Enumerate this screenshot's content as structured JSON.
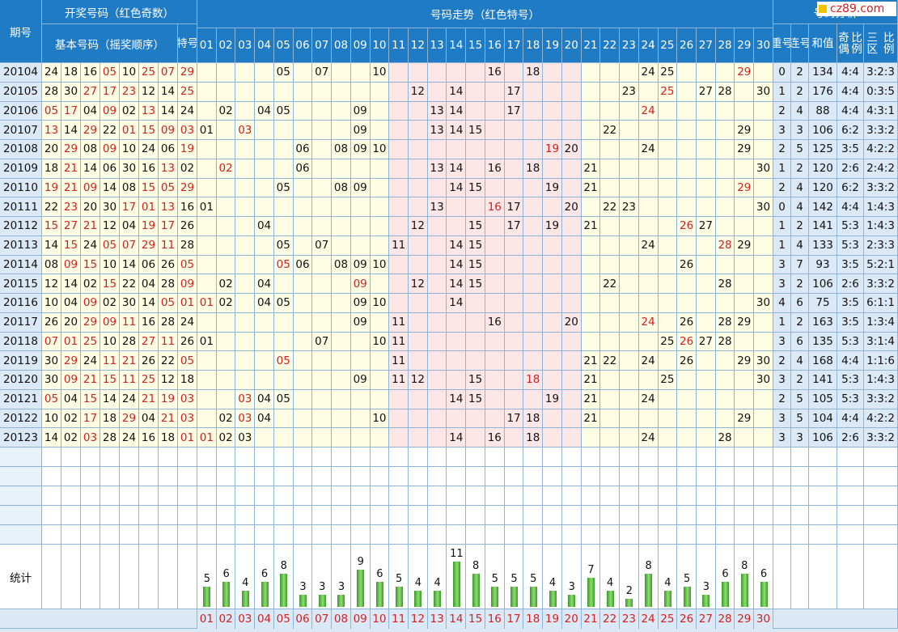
{
  "header": {
    "period": "期号",
    "winning_group": "开奖号码（红色奇数）",
    "basic_numbers": "基本号码（摇奖顺序）",
    "special_l1": "特",
    "special_l2": "号",
    "trend_group": "号码走势（红色特号）",
    "analysis_group": "号码分析",
    "repeat_l1": "重",
    "repeat_l2": "号",
    "consec_l1": "连",
    "consec_l2": "号",
    "sum": "和值",
    "oddeven_l1": "奇偶",
    "oddeven_l2": "比例",
    "zone_l1": "三区",
    "zone_l2": "比例",
    "trend_numbers": [
      "01",
      "02",
      "03",
      "04",
      "05",
      "06",
      "07",
      "08",
      "09",
      "10",
      "11",
      "12",
      "13",
      "14",
      "15",
      "16",
      "17",
      "18",
      "19",
      "20",
      "21",
      "22",
      "23",
      "24",
      "25",
      "26",
      "27",
      "28",
      "29",
      "30"
    ]
  },
  "logo": "cz89.com",
  "stats_label": "统计",
  "rows": [
    {
      "period": "20104",
      "nums": [
        "24",
        "18",
        "16",
        "05",
        "10",
        "25",
        "07"
      ],
      "special": "29",
      "hits": [
        5,
        7,
        10,
        16,
        18,
        24,
        25
      ],
      "sp": 29,
      "repeat": "0",
      "consec": "2",
      "sum": "134",
      "oe": "4:4",
      "zone": "3:2:3"
    },
    {
      "period": "20105",
      "nums": [
        "28",
        "30",
        "27",
        "17",
        "23",
        "12",
        "14"
      ],
      "special": "25",
      "hits": [
        12,
        14,
        17,
        23,
        27,
        28,
        30
      ],
      "sp": 25,
      "repeat": "1",
      "consec": "2",
      "sum": "176",
      "oe": "4:4",
      "zone": "0:3:5"
    },
    {
      "period": "20106",
      "nums": [
        "05",
        "17",
        "04",
        "09",
        "02",
        "13",
        "14"
      ],
      "special": "24",
      "hits": [
        2,
        4,
        5,
        9,
        13,
        14,
        17
      ],
      "sp": 24,
      "repeat": "2",
      "consec": "4",
      "sum": "88",
      "oe": "4:4",
      "zone": "4:3:1"
    },
    {
      "period": "20107",
      "nums": [
        "13",
        "14",
        "29",
        "22",
        "01",
        "15",
        "09"
      ],
      "special": "03",
      "hits": [
        1,
        9,
        13,
        14,
        15,
        22,
        29
      ],
      "sp": 3,
      "repeat": "3",
      "consec": "3",
      "sum": "106",
      "oe": "6:2",
      "zone": "3:3:2"
    },
    {
      "period": "20108",
      "nums": [
        "20",
        "29",
        "08",
        "09",
        "10",
        "24",
        "06"
      ],
      "special": "19",
      "hits": [
        6,
        8,
        9,
        10,
        20,
        24,
        29
      ],
      "sp": 19,
      "repeat": "2",
      "consec": "5",
      "sum": "125",
      "oe": "3:5",
      "zone": "4:2:2"
    },
    {
      "period": "20109",
      "nums": [
        "18",
        "21",
        "14",
        "06",
        "30",
        "16",
        "13"
      ],
      "special": "02",
      "hits": [
        6,
        13,
        14,
        16,
        18,
        21,
        30
      ],
      "sp": 2,
      "repeat": "1",
      "consec": "2",
      "sum": "120",
      "oe": "2:6",
      "zone": "2:4:2"
    },
    {
      "period": "20110",
      "nums": [
        "19",
        "21",
        "09",
        "14",
        "08",
        "15",
        "05"
      ],
      "special": "29",
      "hits": [
        5,
        8,
        9,
        14,
        15,
        19,
        21
      ],
      "sp": 29,
      "repeat": "2",
      "consec": "4",
      "sum": "120",
      "oe": "6:2",
      "zone": "3:3:2"
    },
    {
      "period": "20111",
      "nums": [
        "22",
        "23",
        "20",
        "30",
        "17",
        "01",
        "13"
      ],
      "special": "16",
      "hits": [
        1,
        13,
        17,
        20,
        22,
        23,
        30
      ],
      "sp": 16,
      "repeat": "0",
      "consec": "4",
      "sum": "142",
      "oe": "4:4",
      "zone": "1:4:3"
    },
    {
      "period": "20112",
      "nums": [
        "15",
        "27",
        "21",
        "12",
        "04",
        "19",
        "17"
      ],
      "special": "26",
      "hits": [
        4,
        12,
        15,
        17,
        19,
        21,
        27
      ],
      "sp": 26,
      "repeat": "1",
      "consec": "2",
      "sum": "141",
      "oe": "5:3",
      "zone": "1:4:3"
    },
    {
      "period": "20113",
      "nums": [
        "14",
        "15",
        "24",
        "05",
        "07",
        "29",
        "11"
      ],
      "special": "28",
      "hits": [
        5,
        7,
        11,
        14,
        15,
        24,
        29
      ],
      "sp": 28,
      "repeat": "1",
      "consec": "4",
      "sum": "133",
      "oe": "5:3",
      "zone": "2:3:3"
    },
    {
      "period": "20114",
      "nums": [
        "08",
        "09",
        "15",
        "10",
        "14",
        "06",
        "26"
      ],
      "special": "05",
      "hits": [
        6,
        8,
        9,
        10,
        14,
        15,
        26
      ],
      "sp": 5,
      "repeat": "3",
      "consec": "7",
      "sum": "93",
      "oe": "3:5",
      "zone": "5:2:1"
    },
    {
      "period": "20115",
      "nums": [
        "12",
        "14",
        "02",
        "15",
        "22",
        "04",
        "28"
      ],
      "special": "09",
      "hits": [
        2,
        4,
        12,
        14,
        15,
        22,
        28
      ],
      "sp": 9,
      "repeat": "3",
      "consec": "2",
      "sum": "106",
      "oe": "2:6",
      "zone": "3:3:2"
    },
    {
      "period": "20116",
      "nums": [
        "10",
        "04",
        "09",
        "02",
        "30",
        "14",
        "05"
      ],
      "special": "01",
      "hits": [
        2,
        4,
        5,
        9,
        10,
        14,
        30
      ],
      "sp": 1,
      "repeat": "4",
      "consec": "6",
      "sum": "75",
      "oe": "3:5",
      "zone": "6:1:1"
    },
    {
      "period": "20117",
      "nums": [
        "26",
        "20",
        "29",
        "09",
        "11",
        "16",
        "28"
      ],
      "special": "24",
      "hits": [
        9,
        11,
        16,
        20,
        26,
        28,
        29
      ],
      "sp": 24,
      "repeat": "1",
      "consec": "2",
      "sum": "163",
      "oe": "3:5",
      "zone": "1:3:4"
    },
    {
      "period": "20118",
      "nums": [
        "07",
        "01",
        "25",
        "10",
        "28",
        "27",
        "11"
      ],
      "special": "26",
      "hits": [
        1,
        7,
        10,
        11,
        25,
        27,
        28
      ],
      "sp": 26,
      "repeat": "3",
      "consec": "6",
      "sum": "135",
      "oe": "5:3",
      "zone": "3:1:4"
    },
    {
      "period": "20119",
      "nums": [
        "30",
        "29",
        "24",
        "11",
        "21",
        "26",
        "22"
      ],
      "special": "05",
      "hits": [
        11,
        21,
        22,
        24,
        26,
        29,
        30
      ],
      "sp": 5,
      "repeat": "2",
      "consec": "4",
      "sum": "168",
      "oe": "4:4",
      "zone": "1:1:6"
    },
    {
      "period": "20120",
      "nums": [
        "30",
        "09",
        "21",
        "15",
        "11",
        "25",
        "12"
      ],
      "special": "18",
      "hits": [
        9,
        11,
        12,
        15,
        21,
        25,
        30
      ],
      "sp": 18,
      "repeat": "3",
      "consec": "2",
      "sum": "141",
      "oe": "5:3",
      "zone": "1:4:3"
    },
    {
      "period": "20121",
      "nums": [
        "05",
        "04",
        "15",
        "14",
        "24",
        "21",
        "19"
      ],
      "special": "03",
      "hits": [
        4,
        5,
        14,
        15,
        19,
        21,
        24
      ],
      "sp": 3,
      "repeat": "2",
      "consec": "5",
      "sum": "105",
      "oe": "5:3",
      "zone": "3:3:2"
    },
    {
      "period": "20122",
      "nums": [
        "10",
        "02",
        "17",
        "18",
        "29",
        "04",
        "21"
      ],
      "special": "03",
      "hits": [
        2,
        4,
        10,
        17,
        18,
        21,
        29
      ],
      "sp": 3,
      "repeat": "3",
      "consec": "5",
      "sum": "104",
      "oe": "4:4",
      "zone": "4:2:2"
    },
    {
      "period": "20123",
      "nums": [
        "14",
        "02",
        "03",
        "28",
        "24",
        "16",
        "18"
      ],
      "special": "01",
      "hits": [
        2,
        3,
        14,
        16,
        18,
        24,
        28
      ],
      "sp": 1,
      "repeat": "3",
      "consec": "3",
      "sum": "106",
      "oe": "2:6",
      "zone": "3:3:2"
    }
  ],
  "stats": [
    5,
    6,
    4,
    6,
    8,
    3,
    3,
    3,
    9,
    6,
    5,
    4,
    4,
    11,
    8,
    5,
    5,
    5,
    4,
    3,
    7,
    4,
    2,
    8,
    4,
    5,
    3,
    6,
    8,
    6
  ],
  "colors": {
    "header": "#1e7bc4",
    "odd": "#d42020",
    "bar": "#3a9a2c",
    "pink": "#fde6e6",
    "cream": "#fffde4"
  }
}
